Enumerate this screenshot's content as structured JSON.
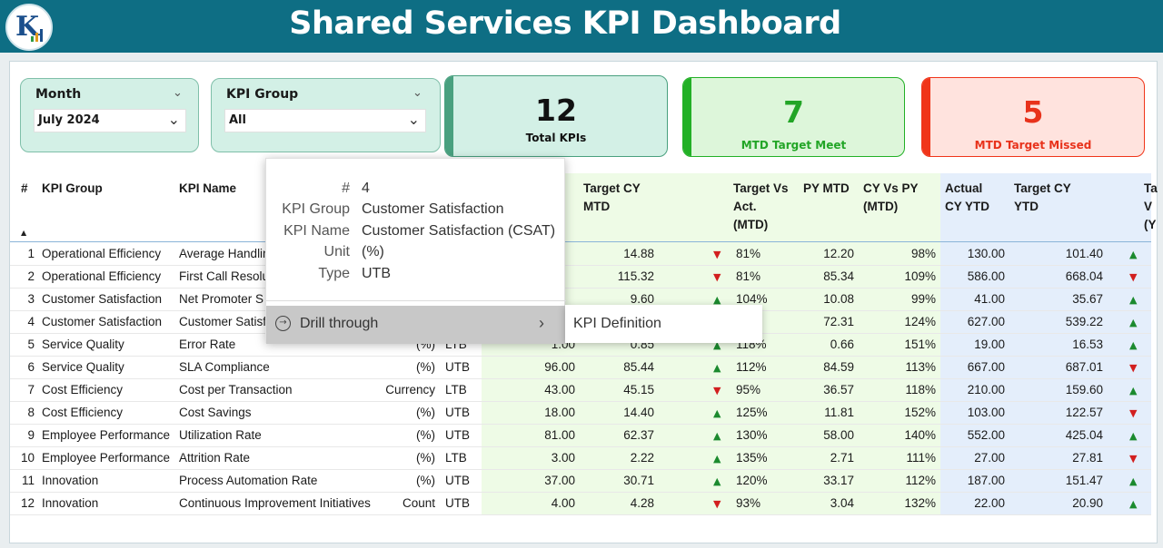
{
  "header": {
    "title": "Shared Services KPI Dashboard",
    "logo_icon": "kpi-logo-icon"
  },
  "filters": [
    {
      "label": "Month",
      "value": "July 2024"
    },
    {
      "label": "KPI Group",
      "value": "All"
    }
  ],
  "cards": [
    {
      "value": "12",
      "caption": "Total KPIs",
      "accent": "#49a07f",
      "bg": "#d3f0e6",
      "value_color": "#111111",
      "caption_color": "#111111"
    },
    {
      "value": "7",
      "caption": "MTD Target Meet",
      "accent": "#22b026",
      "bg": "#ddf6da",
      "value_color": "#22a526",
      "caption_color": "#22a526"
    },
    {
      "value": "5",
      "caption": "MTD Target Missed",
      "accent": "#f0351a",
      "bg": "#ffe3de",
      "value_color": "#e8321b",
      "caption_color": "#e8321b"
    }
  ],
  "table": {
    "headers": {
      "num": "#",
      "group": "KPI Group",
      "name": "KPI Name",
      "target_mtd": [
        "Target CY",
        "MTD"
      ],
      "tva_mtd": [
        "Target Vs",
        "Act.",
        "(MTD)"
      ],
      "py_mtd": [
        "PY MTD"
      ],
      "cyvspy_mtd": [
        "CY Vs PY",
        "(MTD)"
      ],
      "actual_ytd": [
        "Actual",
        "CY YTD"
      ],
      "target_ytd": [
        "Target CY",
        "YTD"
      ],
      "tva_ytd": [
        "Ta",
        "V",
        "(Y"
      ]
    },
    "rows": [
      {
        "num": "1",
        "group": "Operational Efficiency",
        "name": "Average Handlin",
        "unit": "",
        "type": "",
        "actual_mtd": "",
        "target_mtd": "14.88",
        "dir": "down",
        "tva": "81%",
        "py": "12.20",
        "cyvspy": "98%",
        "actual_ytd": "130.00",
        "target_ytd": "101.40",
        "ydir": "up"
      },
      {
        "num": "2",
        "group": "Operational Efficiency",
        "name": "First Call Resolu",
        "unit": "",
        "type": "",
        "actual_mtd": "",
        "target_mtd": "115.32",
        "dir": "down",
        "tva": "81%",
        "py": "85.34",
        "cyvspy": "109%",
        "actual_ytd": "586.00",
        "target_ytd": "668.04",
        "ydir": "down"
      },
      {
        "num": "3",
        "group": "Customer Satisfaction",
        "name": "Net Promoter S",
        "unit": "",
        "type": "",
        "actual_mtd": "",
        "target_mtd": "9.60",
        "dir": "up",
        "tva": "104%",
        "py": "10.08",
        "cyvspy": "99%",
        "actual_ytd": "41.00",
        "target_ytd": "35.67",
        "ydir": "up"
      },
      {
        "num": "4",
        "group": "Customer Satisfaction",
        "name": "Customer Satisf",
        "unit": "",
        "type": "",
        "actual_mtd": "",
        "target_mtd": "",
        "dir": "",
        "tva": "",
        "py": "72.31",
        "cyvspy": "124%",
        "actual_ytd": "627.00",
        "target_ytd": "539.22",
        "ydir": "up"
      },
      {
        "num": "5",
        "group": "Service Quality",
        "name": "Error Rate",
        "unit": "(%)",
        "type": "LTB",
        "actual_mtd": "1.00",
        "target_mtd": "0.85",
        "dir": "up",
        "tva": "118%",
        "py": "0.66",
        "cyvspy": "151%",
        "actual_ytd": "19.00",
        "target_ytd": "16.53",
        "ydir": "up"
      },
      {
        "num": "6",
        "group": "Service Quality",
        "name": "SLA Compliance",
        "unit": "(%)",
        "type": "UTB",
        "actual_mtd": "96.00",
        "target_mtd": "85.44",
        "dir": "up",
        "tva": "112%",
        "py": "84.59",
        "cyvspy": "113%",
        "actual_ytd": "667.00",
        "target_ytd": "687.01",
        "ydir": "down"
      },
      {
        "num": "7",
        "group": "Cost Efficiency",
        "name": "Cost per Transaction",
        "unit": "Currency",
        "type": "LTB",
        "actual_mtd": "43.00",
        "target_mtd": "45.15",
        "dir": "down",
        "tva": "95%",
        "py": "36.57",
        "cyvspy": "118%",
        "actual_ytd": "210.00",
        "target_ytd": "159.60",
        "ydir": "up"
      },
      {
        "num": "8",
        "group": "Cost Efficiency",
        "name": "Cost Savings",
        "unit": "(%)",
        "type": "UTB",
        "actual_mtd": "18.00",
        "target_mtd": "14.40",
        "dir": "up",
        "tva": "125%",
        "py": "11.81",
        "cyvspy": "152%",
        "actual_ytd": "103.00",
        "target_ytd": "122.57",
        "ydir": "down"
      },
      {
        "num": "9",
        "group": "Employee Performance",
        "name": "Utilization Rate",
        "unit": "(%)",
        "type": "UTB",
        "actual_mtd": "81.00",
        "target_mtd": "62.37",
        "dir": "up",
        "tva": "130%",
        "py": "58.00",
        "cyvspy": "140%",
        "actual_ytd": "552.00",
        "target_ytd": "425.04",
        "ydir": "up"
      },
      {
        "num": "10",
        "group": "Employee Performance",
        "name": "Attrition Rate",
        "unit": "(%)",
        "type": "LTB",
        "actual_mtd": "3.00",
        "target_mtd": "2.22",
        "dir": "up",
        "tva": "135%",
        "py": "2.71",
        "cyvspy": "111%",
        "actual_ytd": "27.00",
        "target_ytd": "27.81",
        "ydir": "down"
      },
      {
        "num": "11",
        "group": "Innovation",
        "name": "Process Automation Rate",
        "unit": "(%)",
        "type": "UTB",
        "actual_mtd": "37.00",
        "target_mtd": "30.71",
        "dir": "up",
        "tva": "120%",
        "py": "33.17",
        "cyvspy": "112%",
        "actual_ytd": "187.00",
        "target_ytd": "151.47",
        "ydir": "up"
      },
      {
        "num": "12",
        "group": "Innovation",
        "name": "Continuous Improvement Initiatives",
        "unit": "Count",
        "type": "UTB",
        "actual_mtd": "4.00",
        "target_mtd": "4.28",
        "dir": "down",
        "tva": "93%",
        "py": "3.04",
        "cyvspy": "132%",
        "actual_ytd": "22.00",
        "target_ytd": "20.90",
        "ydir": "up"
      }
    ]
  },
  "tooltip": {
    "fields": [
      {
        "key": "#",
        "value": "4"
      },
      {
        "key": "KPI Group",
        "value": "Customer Satisfaction"
      },
      {
        "key": "KPI Name",
        "value": "Customer Satisfaction (CSAT)"
      },
      {
        "key": "Unit",
        "value": "(%)"
      },
      {
        "key": "Type",
        "value": "UTB"
      }
    ],
    "drill_label": "Drill through",
    "submenu_item": "KPI Definition"
  }
}
